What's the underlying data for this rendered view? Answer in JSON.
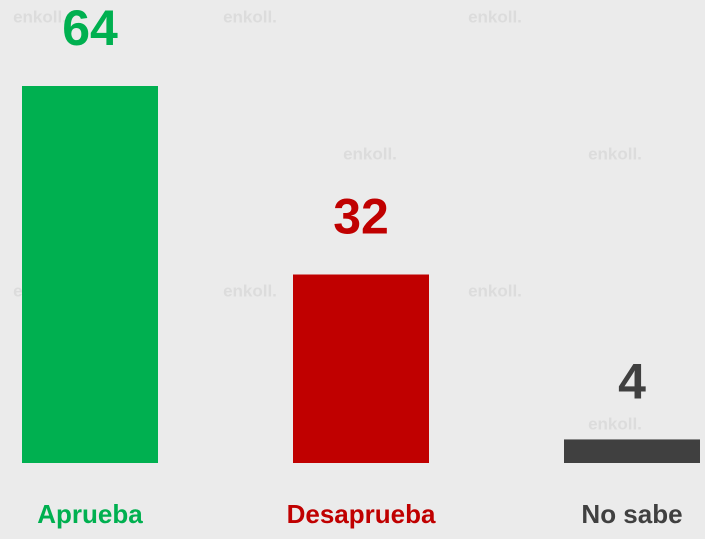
{
  "chart_data": {
    "type": "bar",
    "watermark": "enkoll.",
    "categories": [
      "Aprueba",
      "Desaprueba",
      "No sabe"
    ],
    "values": [
      64,
      32,
      4
    ],
    "colors": [
      "#00b050",
      "#c00000",
      "#404040"
    ],
    "ylim": [
      0,
      64
    ]
  }
}
